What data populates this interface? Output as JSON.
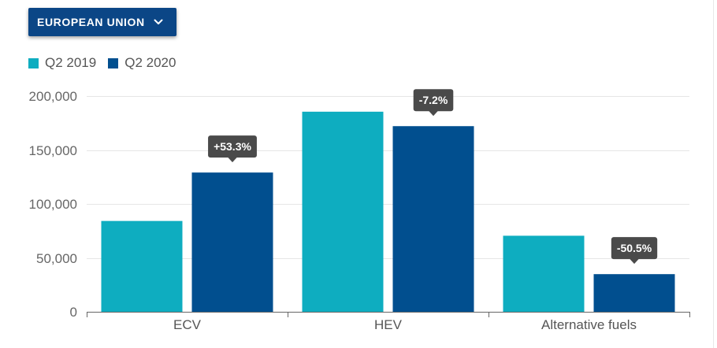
{
  "region_selector": {
    "label": "EUROPEAN UNION",
    "icon": "chevron-down-icon"
  },
  "theme": {
    "dropdown_bg": "#0b4686",
    "data_label_bg": "#4a4a4a"
  },
  "chart_data": {
    "type": "bar",
    "title": "",
    "xlabel": "",
    "ylabel": "",
    "categories": [
      "ECV",
      "HEV",
      "Alternative fuels"
    ],
    "series": [
      {
        "name": "Q2 2019",
        "color": "#0eadc0",
        "values": [
          84200,
          185500,
          70500
        ]
      },
      {
        "name": "Q2 2020",
        "color": "#014f8f",
        "values": [
          129100,
          172100,
          34900
        ],
        "data_labels": [
          "+53.3%",
          "-7.2%",
          "-50.5%"
        ]
      }
    ],
    "ylim": [
      0,
      200000
    ],
    "yticks": [
      0,
      50000,
      100000,
      150000,
      200000
    ],
    "ytick_labels": [
      "0",
      "50,000",
      "100,000",
      "150,000",
      "200,000"
    ],
    "grid": true,
    "legend": "top-left"
  }
}
